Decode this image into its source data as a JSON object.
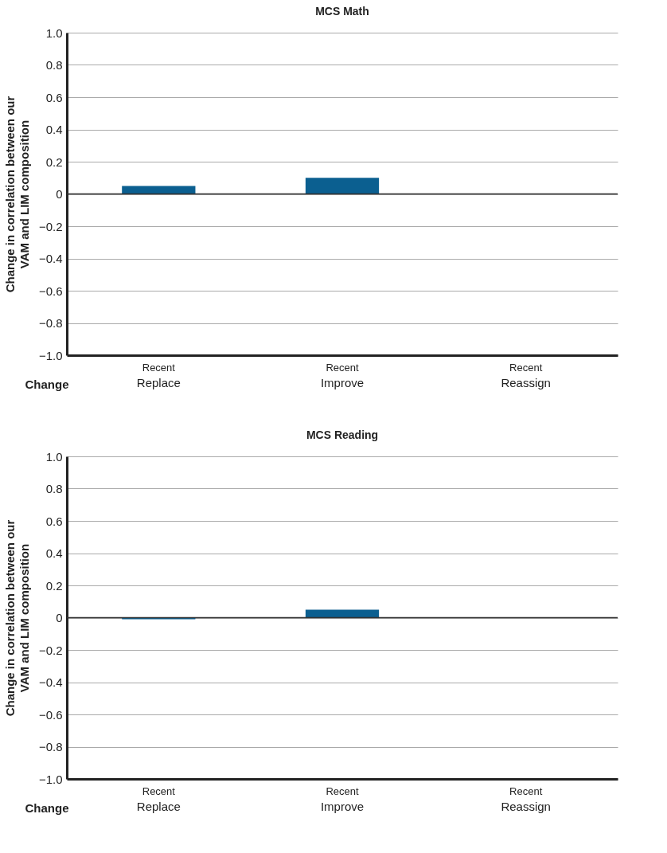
{
  "chart_data": [
    {
      "type": "bar",
      "title": "MCS Math",
      "ylabel": "Change in correlation between our\nVAM and LIM composition",
      "xlabel": "Change",
      "categories": [
        "Replace",
        "Improve",
        "Reassign"
      ],
      "values": [
        0.05,
        0.1,
        0
      ],
      "color": "#0b5f90",
      "ylim": [
        -1,
        1
      ],
      "yticks": [
        {
          "value": -1,
          "label": "−1.0"
        },
        {
          "value": -0.8,
          "label": "−0.8"
        },
        {
          "value": -0.6,
          "label": "−0.6"
        },
        {
          "value": -0.4,
          "label": "−0.4"
        },
        {
          "value": -0.2,
          "label": "−0.2"
        },
        0,
        0.2,
        0.4,
        0.6,
        0.8,
        {
          "value": 1,
          "label": "1.0"
        }
      ],
      "grid": "y",
      "ref_lines": [
        {
          "axis": "y",
          "value": 0,
          "color": "#333333"
        }
      ],
      "annotations": [
        "Recent",
        "Recent",
        "Recent"
      ]
    },
    {
      "type": "bar",
      "title": "MCS Reading",
      "ylabel": "Change in correlation between our\nVAM and LIM composition",
      "xlabel": "Change",
      "categories": [
        "Replace",
        "Improve",
        "Reassign"
      ],
      "values": [
        -0.01,
        0.05,
        0
      ],
      "color": "#0b5f90",
      "ylim": [
        -1,
        1
      ],
      "yticks": [
        {
          "value": -1,
          "label": "−1.0"
        },
        {
          "value": -0.8,
          "label": "−0.8"
        },
        {
          "value": -0.6,
          "label": "−0.6"
        },
        {
          "value": -0.4,
          "label": "−0.4"
        },
        {
          "value": -0.2,
          "label": "−0.2"
        },
        0,
        0.2,
        0.4,
        0.6,
        0.8,
        {
          "value": 1,
          "label": "1.0"
        }
      ],
      "grid": "y",
      "ref_lines": [
        {
          "axis": "y",
          "value": 0,
          "color": "#333333"
        }
      ],
      "annotations": [
        "Recent",
        "Recent",
        "Recent"
      ]
    }
  ]
}
